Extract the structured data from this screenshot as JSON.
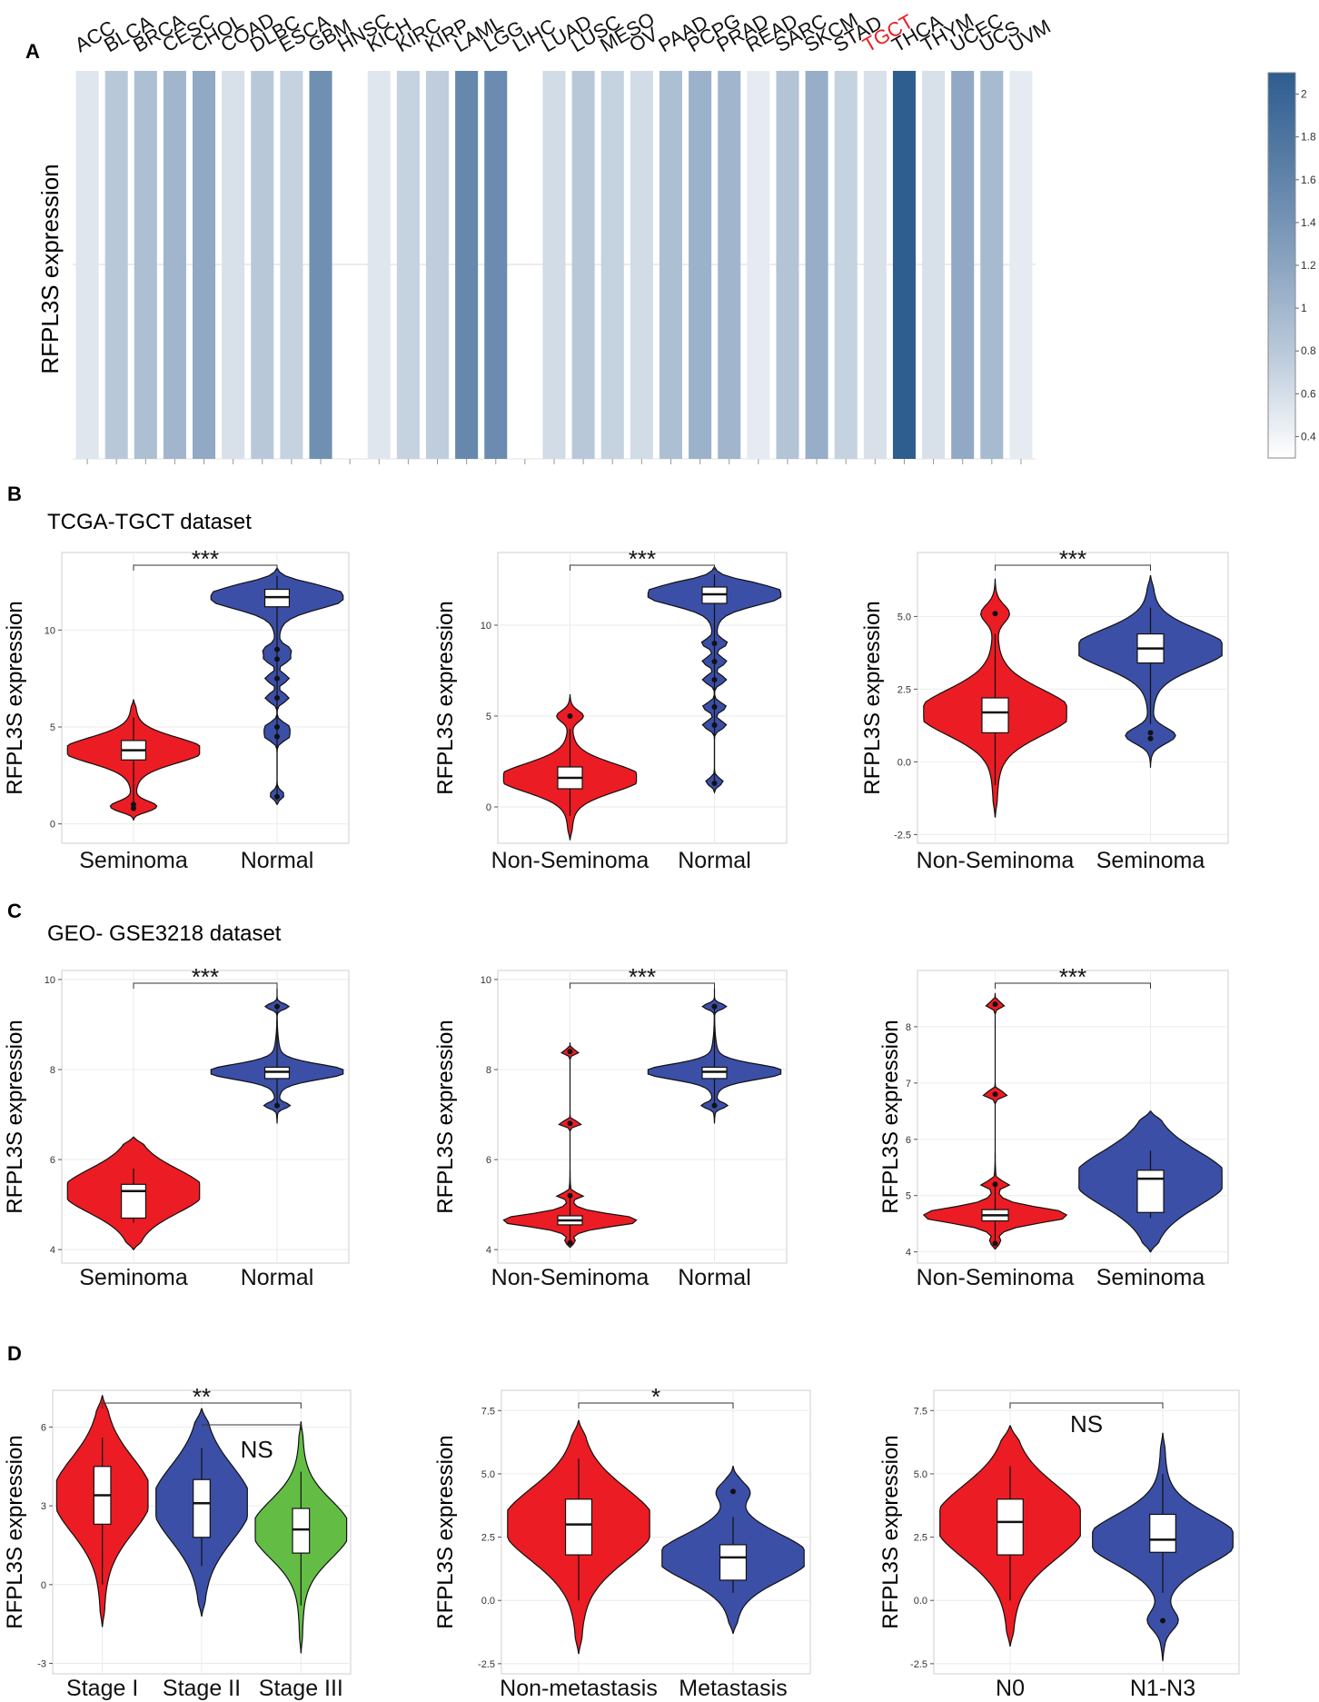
{
  "colors": {
    "red": "#ec1c24",
    "blue": "#3b4fa6",
    "green": "#63bd45",
    "highlight": "#ed1c24",
    "heat_high": "#2e5d8f",
    "heat_low": "#ffffff"
  },
  "panels": {
    "a": "A",
    "b": "B",
    "c": "C",
    "d": "D"
  },
  "datasets": {
    "b": "TCGA-TGCT dataset",
    "c": "GEO- GSE3218 dataset"
  },
  "chart_data": [
    {
      "id": "A",
      "type": "heatmap",
      "ylabel": "RFPL3S expression",
      "highlight": "TGCT",
      "categories": [
        "ACC",
        "BLCA",
        "BRCA",
        "CESC",
        "CHOL",
        "COAD",
        "DLBC",
        "ESCA",
        "GBM",
        "HNSC",
        "KICH",
        "KIRC",
        "KIRP",
        "LAML",
        "LGG",
        "LIHC",
        "LUAD",
        "LUSC",
        "MESO",
        "OV",
        "PAAD",
        "PCPG",
        "PRAD",
        "READ",
        "SARC",
        "SKCM",
        "STAD",
        "TGCT",
        "THCA",
        "THYM",
        "UCEC",
        "UCS",
        "UVM"
      ],
      "values": [
        0.5,
        0.8,
        0.9,
        1.0,
        1.15,
        0.55,
        0.8,
        0.7,
        1.45,
        null,
        0.5,
        0.7,
        0.75,
        1.55,
        1.5,
        null,
        0.6,
        0.8,
        0.7,
        0.6,
        0.9,
        1.05,
        1.0,
        0.45,
        0.85,
        1.1,
        0.7,
        0.55,
        2.1,
        0.55,
        1.15,
        0.95,
        0.45
      ],
      "colorbar": {
        "range": [
          0.3,
          2.1
        ],
        "ticks": [
          "0.4",
          "0.6",
          "0.8",
          "1",
          "1.2",
          "1.4",
          "1.6",
          "1.8",
          "2"
        ]
      }
    },
    {
      "id": "B1",
      "type": "violin",
      "ylabel": "RFPL3S expression",
      "ylim": [
        -1,
        14
      ],
      "yticks": [
        "0",
        "5",
        "10"
      ],
      "categories": [
        "Seminoma",
        "Normal"
      ],
      "significance": "***",
      "groups": [
        {
          "name": "Seminoma",
          "median": 3.8,
          "q1": 3.3,
          "q3": 4.3,
          "wlo": 0.8,
          "whi": 5.5,
          "outliers": [
            0.8,
            1.0
          ],
          "vmin": 0.2,
          "vmax": 6.4,
          "color": "red"
        },
        {
          "name": "Normal",
          "median": 11.7,
          "q1": 11.2,
          "q3": 12.1,
          "wlo": 1.2,
          "whi": 12.8,
          "outliers": [
            1.4,
            4.5,
            5.0,
            6.5,
            7.5,
            8.5,
            9.0
          ],
          "vmin": 1.0,
          "vmax": 13.2,
          "color": "blue"
        }
      ]
    },
    {
      "id": "B2",
      "type": "violin",
      "ylabel": "RFPL3S expression",
      "ylim": [
        -2,
        14
      ],
      "yticks": [
        "0",
        "5",
        "10"
      ],
      "categories": [
        "Non-Seminoma",
        "Normal"
      ],
      "significance": "***",
      "groups": [
        {
          "name": "Non-Seminoma",
          "median": 1.6,
          "q1": 1.0,
          "q3": 2.2,
          "wlo": -0.5,
          "whi": 4.3,
          "outliers": [
            5.0
          ],
          "vmin": -1.8,
          "vmax": 6.2,
          "color": "red"
        },
        {
          "name": "Normal",
          "median": 11.7,
          "q1": 11.2,
          "q3": 12.1,
          "wlo": 1.2,
          "whi": 12.8,
          "outliers": [
            1.3,
            4.5,
            5.5,
            7.0,
            8.0,
            9.0
          ],
          "vmin": 0.8,
          "vmax": 13.2,
          "color": "blue"
        }
      ]
    },
    {
      "id": "B3",
      "type": "violin",
      "ylabel": "RFPL3S expression",
      "ylim": [
        -2.8,
        7.2
      ],
      "yticks": [
        "-2.5",
        "0.0",
        "2.5",
        "5.0"
      ],
      "categories": [
        "Non-Seminoma",
        "Seminoma"
      ],
      "significance": "***",
      "groups": [
        {
          "name": "Non-Seminoma",
          "median": 1.7,
          "q1": 1.0,
          "q3": 2.2,
          "wlo": -0.8,
          "whi": 4.4,
          "outliers": [
            5.1
          ],
          "vmin": -1.9,
          "vmax": 6.3,
          "color": "red"
        },
        {
          "name": "Seminoma",
          "median": 3.9,
          "q1": 3.4,
          "q3": 4.4,
          "wlo": 1.3,
          "whi": 5.3,
          "outliers": [
            0.8,
            1.0
          ],
          "vmin": -0.2,
          "vmax": 6.4,
          "color": "blue"
        }
      ]
    },
    {
      "id": "C1",
      "type": "violin",
      "ylabel": "RFPL3S expression",
      "ylim": [
        3.7,
        10.2
      ],
      "yticks": [
        "4",
        "6",
        "8",
        "10"
      ],
      "categories": [
        "Seminoma",
        "Normal"
      ],
      "significance": "***",
      "groups": [
        {
          "name": "Seminoma",
          "median": 5.3,
          "q1": 4.7,
          "q3": 5.45,
          "wlo": 4.6,
          "whi": 5.8,
          "outliers": [],
          "vmin": 4.0,
          "vmax": 6.5,
          "color": "red"
        },
        {
          "name": "Normal",
          "median": 7.95,
          "q1": 7.8,
          "q3": 8.05,
          "wlo": 7.2,
          "whi": 9.4,
          "outliers": [
            9.4,
            7.2
          ],
          "vmin": 6.8,
          "vmax": 9.8,
          "color": "blue"
        }
      ]
    },
    {
      "id": "C2",
      "type": "violin",
      "ylabel": "RFPL3S expression",
      "ylim": [
        3.7,
        10.2
      ],
      "yticks": [
        "4",
        "6",
        "8",
        "10"
      ],
      "categories": [
        "Non-Seminoma",
        "Normal"
      ],
      "significance": "***",
      "groups": [
        {
          "name": "Non-Seminoma",
          "median": 4.65,
          "q1": 4.55,
          "q3": 4.75,
          "wlo": 4.2,
          "whi": 5.2,
          "outliers": [
            8.4,
            6.8,
            5.2,
            4.15
          ],
          "vmin": 4.05,
          "vmax": 8.6,
          "color": "red"
        },
        {
          "name": "Normal",
          "median": 7.95,
          "q1": 7.8,
          "q3": 8.05,
          "wlo": 7.2,
          "whi": 9.4,
          "outliers": [
            9.4,
            7.2
          ],
          "vmin": 6.8,
          "vmax": 9.8,
          "color": "blue"
        }
      ]
    },
    {
      "id": "C3",
      "type": "violin",
      "ylabel": "RFPL3S expression",
      "ylim": [
        3.8,
        9.0
      ],
      "yticks": [
        "4",
        "5",
        "6",
        "7",
        "8"
      ],
      "categories": [
        "Non-Seminoma",
        "Seminoma"
      ],
      "significance": "***",
      "groups": [
        {
          "name": "Non-Seminoma",
          "median": 4.65,
          "q1": 4.55,
          "q3": 4.75,
          "wlo": 4.2,
          "whi": 5.2,
          "outliers": [
            8.4,
            6.8,
            5.2,
            4.15
          ],
          "vmin": 4.05,
          "vmax": 8.6,
          "color": "red"
        },
        {
          "name": "Seminoma",
          "median": 5.3,
          "q1": 4.7,
          "q3": 5.45,
          "wlo": 4.6,
          "whi": 5.8,
          "outliers": [],
          "vmin": 4.0,
          "vmax": 6.5,
          "color": "blue"
        }
      ]
    },
    {
      "id": "D1",
      "type": "violin",
      "ylabel": "RFPL3S expression",
      "ylim": [
        -3.4,
        7.4
      ],
      "yticks": [
        "-3",
        "0",
        "3",
        "6"
      ],
      "categories": [
        "Stage I",
        "Stage II",
        "Stage III"
      ],
      "brackets": [
        {
          "from": 0,
          "to": 2,
          "label": "**"
        },
        {
          "from": 1,
          "to": 2,
          "label": "NS"
        }
      ],
      "groups": [
        {
          "name": "Stage I",
          "median": 3.4,
          "q1": 2.3,
          "q3": 4.5,
          "wlo": 0.0,
          "whi": 5.6,
          "outliers": [],
          "vmin": -1.6,
          "vmax": 7.2,
          "color": "red"
        },
        {
          "name": "Stage II",
          "median": 3.1,
          "q1": 1.8,
          "q3": 4.0,
          "wlo": 0.7,
          "whi": 5.2,
          "outliers": [],
          "vmin": -1.2,
          "vmax": 6.7,
          "color": "blue"
        },
        {
          "name": "Stage III",
          "median": 2.1,
          "q1": 1.2,
          "q3": 2.9,
          "wlo": -0.8,
          "whi": 4.3,
          "outliers": [],
          "vmin": -2.6,
          "vmax": 6.2,
          "color": "green"
        }
      ]
    },
    {
      "id": "D2",
      "type": "violin",
      "ylabel": "RFPL3S expression",
      "ylim": [
        -2.9,
        8.3
      ],
      "yticks": [
        "-2.5",
        "0.0",
        "2.5",
        "5.0",
        "7.5"
      ],
      "categories": [
        "Non-metastasis",
        "Metastasis"
      ],
      "significance": "*",
      "groups": [
        {
          "name": "Non-metastasis",
          "median": 3.0,
          "q1": 1.8,
          "q3": 4.0,
          "wlo": 0.0,
          "whi": 5.6,
          "outliers": [],
          "vmin": -2.1,
          "vmax": 7.1,
          "color": "red"
        },
        {
          "name": "Metastasis",
          "median": 1.7,
          "q1": 0.8,
          "q3": 2.2,
          "wlo": 0.3,
          "whi": 3.3,
          "outliers": [
            4.3
          ],
          "vmin": -1.3,
          "vmax": 5.3,
          "color": "blue"
        }
      ]
    },
    {
      "id": "D3",
      "type": "violin",
      "ylabel": "RFPL3S expression",
      "ylim": [
        -2.9,
        8.3
      ],
      "yticks": [
        "-2.5",
        "0.0",
        "2.5",
        "5.0",
        "7.5"
      ],
      "categories": [
        "N0",
        "N1-N3"
      ],
      "significance": "NS",
      "groups": [
        {
          "name": "N0",
          "median": 3.1,
          "q1": 1.8,
          "q3": 4.0,
          "wlo": 0.0,
          "whi": 5.3,
          "outliers": [],
          "vmin": -1.8,
          "vmax": 6.9,
          "color": "red"
        },
        {
          "name": "N1-N3",
          "median": 2.4,
          "q1": 1.9,
          "q3": 3.4,
          "wlo": 0.3,
          "whi": 5.0,
          "outliers": [
            -0.8
          ],
          "vmin": -2.4,
          "vmax": 6.6,
          "color": "blue"
        }
      ]
    }
  ]
}
